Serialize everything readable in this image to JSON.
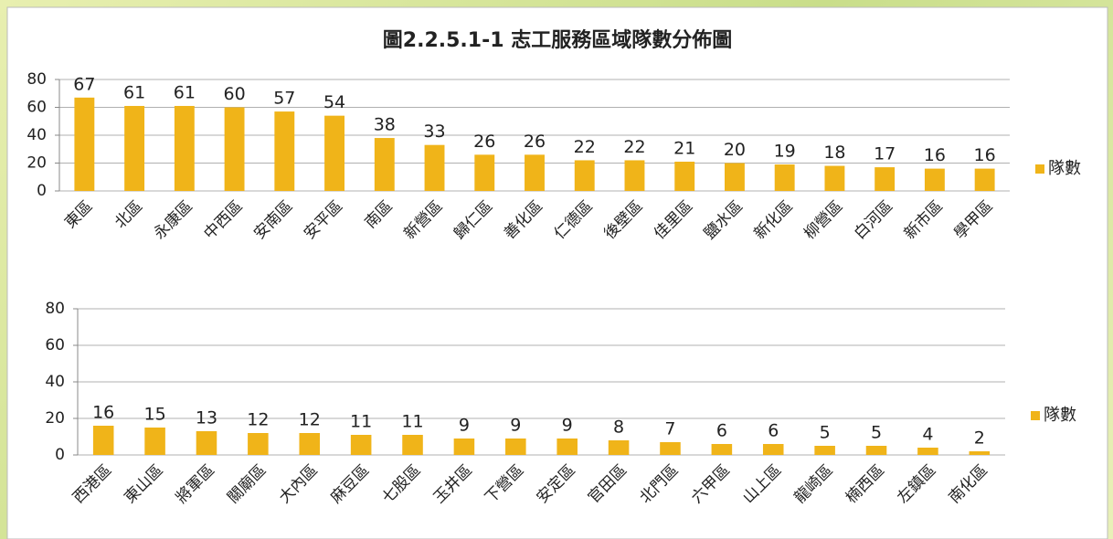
{
  "chart_data": [
    {
      "type": "bar",
      "title": "圖2.2.5.1-1 志工服務區域隊數分佈圖",
      "categories": [
        "東區",
        "北區",
        "永康區",
        "中西區",
        "安南區",
        "安平區",
        "南區",
        "新營區",
        "歸仁區",
        "善化區",
        "仁德區",
        "後壁區",
        "佳里區",
        "鹽水區",
        "新化區",
        "柳營區",
        "白河區",
        "新市區",
        "學甲區"
      ],
      "series": [
        {
          "name": "隊數",
          "color": "#f0b419",
          "values": [
            67,
            61,
            61,
            60,
            57,
            54,
            38,
            33,
            26,
            26,
            22,
            22,
            21,
            20,
            19,
            18,
            17,
            16,
            16
          ]
        }
      ],
      "ylim": [
        0,
        80
      ],
      "yticks": [
        0,
        20,
        40,
        60,
        80
      ],
      "grid": true,
      "legend": "right"
    },
    {
      "type": "bar",
      "categories": [
        "西港區",
        "東山區",
        "將軍區",
        "關廟區",
        "大內區",
        "麻豆區",
        "七股區",
        "玉井區",
        "下營區",
        "安定區",
        "官田區",
        "北門區",
        "六甲區",
        "山上區",
        "龍崎區",
        "楠西區",
        "左鎮區",
        "南化區"
      ],
      "series": [
        {
          "name": "隊數",
          "color": "#f0b419",
          "values": [
            16,
            15,
            13,
            12,
            12,
            11,
            11,
            9,
            9,
            9,
            8,
            7,
            6,
            6,
            5,
            5,
            4,
            2
          ]
        }
      ],
      "ylim": [
        0,
        80
      ],
      "yticks": [
        0,
        20,
        40,
        60,
        80
      ],
      "grid": true,
      "legend": "right"
    }
  ]
}
